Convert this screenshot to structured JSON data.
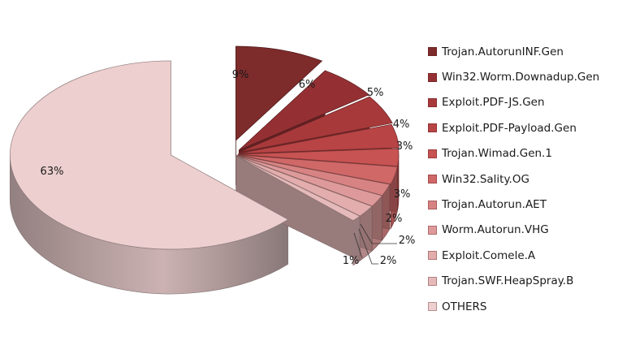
{
  "chart_data": {
    "type": "pie",
    "style": "3d-exploded",
    "title": "",
    "legend_position": "right",
    "categories": [
      "Trojan.AutorunINF.Gen",
      "Win32.Worm.Downadup.Gen",
      "Exploit.PDF-JS.Gen",
      "Exploit.PDF-Payload.Gen",
      "Trojan.Wimad.Gen.1",
      "Win32.Sality.OG",
      "Trojan.Autorun.AET",
      "Worm.Autorun.VHG",
      "Exploit.Comele.A",
      "Trojan.SWF.HeapSpray.B",
      "OTHERS"
    ],
    "values": [
      9,
      6,
      5,
      4,
      3,
      3,
      2,
      2,
      2,
      1,
      63
    ],
    "data_labels": [
      "9%",
      "6%",
      "5%",
      "4%",
      "3%",
      "3%",
      "2%",
      "2%",
      "2%",
      "1%",
      "63%"
    ],
    "colors": [
      "#7e2b2c",
      "#943033",
      "#a8393b",
      "#b84445",
      "#c75352",
      "#d06868",
      "#d88383",
      "#de9a9a",
      "#e3adad",
      "#e6baba",
      "#edcfcf"
    ]
  }
}
